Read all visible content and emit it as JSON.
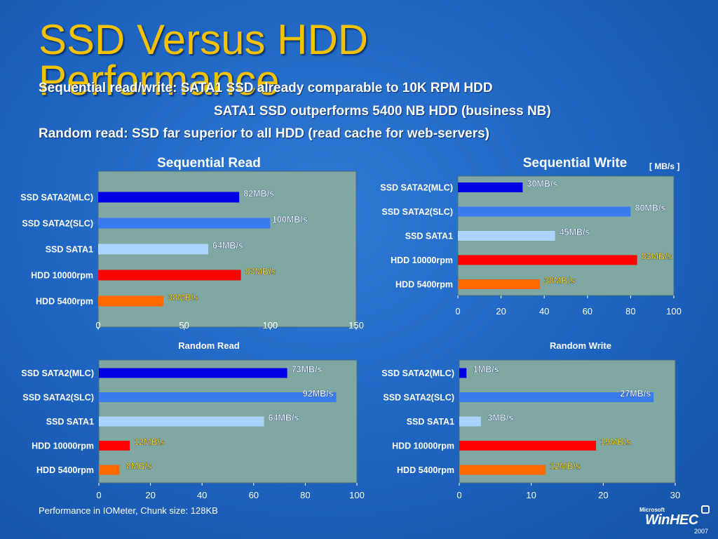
{
  "slide": {
    "title": "SSD Versus HDD Performance",
    "bullets": [
      "Sequential read/write:  SATA1 SSD already comparable to 10K RPM HDD",
      "SATA1 SSD outperforms 5400 NB HDD (business NB)",
      "Random read:  SSD far superior to all HDD (read cache for web-servers)"
    ],
    "footnote": "Performance in IOMeter, Chunk size: 128KB",
    "logo": {
      "microsoft": "Microsoft",
      "name": "WinHEC",
      "year": "2007"
    }
  },
  "colors": {
    "background": "#1d63c0",
    "title": "#f2c200",
    "plot_area": "#7fa8a2",
    "ssd_sata2_mlc": "#0000e6",
    "ssd_sata2_slc": "#3a7cf0",
    "ssd_sata1": "#a8d4ff",
    "hdd_10000rpm": "#ff0000",
    "hdd_5400rpm": "#ff6a00"
  },
  "chart_data": [
    {
      "type": "bar",
      "orientation": "horizontal",
      "title": "Sequential Read",
      "unit_note": "",
      "categories": [
        "SSD SATA2(MLC)",
        "SSD SATA2(SLC)",
        "SSD SATA1",
        "HDD 10000rpm",
        "HDD 5400rpm"
      ],
      "values": [
        82,
        100,
        64,
        83,
        38
      ],
      "labels": [
        "82MB/s",
        "100MB/s",
        "64MB/s",
        "83MB/s",
        "38MB/s"
      ],
      "xlim": [
        0,
        150
      ],
      "xticks": [
        0,
        50,
        100,
        150
      ],
      "grid": false
    },
    {
      "type": "bar",
      "orientation": "horizontal",
      "title": "Sequential Write",
      "unit_note": "[ MB/s ]",
      "categories": [
        "SSD SATA2(MLC)",
        "SSD SATA2(SLC)",
        "SSD SATA1",
        "HDD 10000rpm",
        "HDD 5400rpm"
      ],
      "values": [
        30,
        80,
        45,
        83,
        38
      ],
      "labels": [
        "30MB/s",
        "80MB/s",
        "45MB/s",
        "83MB/s",
        "38MB/s"
      ],
      "xlim": [
        0,
        100
      ],
      "xticks": [
        0,
        20,
        40,
        60,
        80,
        100
      ],
      "grid": false
    },
    {
      "type": "bar",
      "orientation": "horizontal",
      "title": "Random Read",
      "unit_note": "",
      "categories": [
        "SSD SATA2(MLC)",
        "SSD SATA2(SLC)",
        "SSD SATA1",
        "HDD 10000rpm",
        "HDD 5400rpm"
      ],
      "values": [
        73,
        92,
        64,
        12,
        8
      ],
      "labels": [
        "73MB/s",
        "92MB/s",
        "64MB/s",
        "12MB/s",
        "8MB/s"
      ],
      "xlim": [
        0,
        100
      ],
      "xticks": [
        0,
        20,
        40,
        60,
        80,
        100
      ],
      "grid": false
    },
    {
      "type": "bar",
      "orientation": "horizontal",
      "title": "Random Write",
      "unit_note": "",
      "categories": [
        "SSD SATA2(MLC)",
        "SSD SATA2(SLC)",
        "SSD SATA1",
        "HDD 10000rpm",
        "HDD 5400rpm"
      ],
      "values": [
        1,
        27,
        3,
        19,
        12
      ],
      "labels": [
        "1MB/s",
        "27MB/s",
        "3MB/s",
        "19MB/s",
        "12MB/s"
      ],
      "xlim": [
        0,
        30
      ],
      "xticks": [
        0,
        10,
        20,
        30
      ],
      "grid": false
    }
  ]
}
